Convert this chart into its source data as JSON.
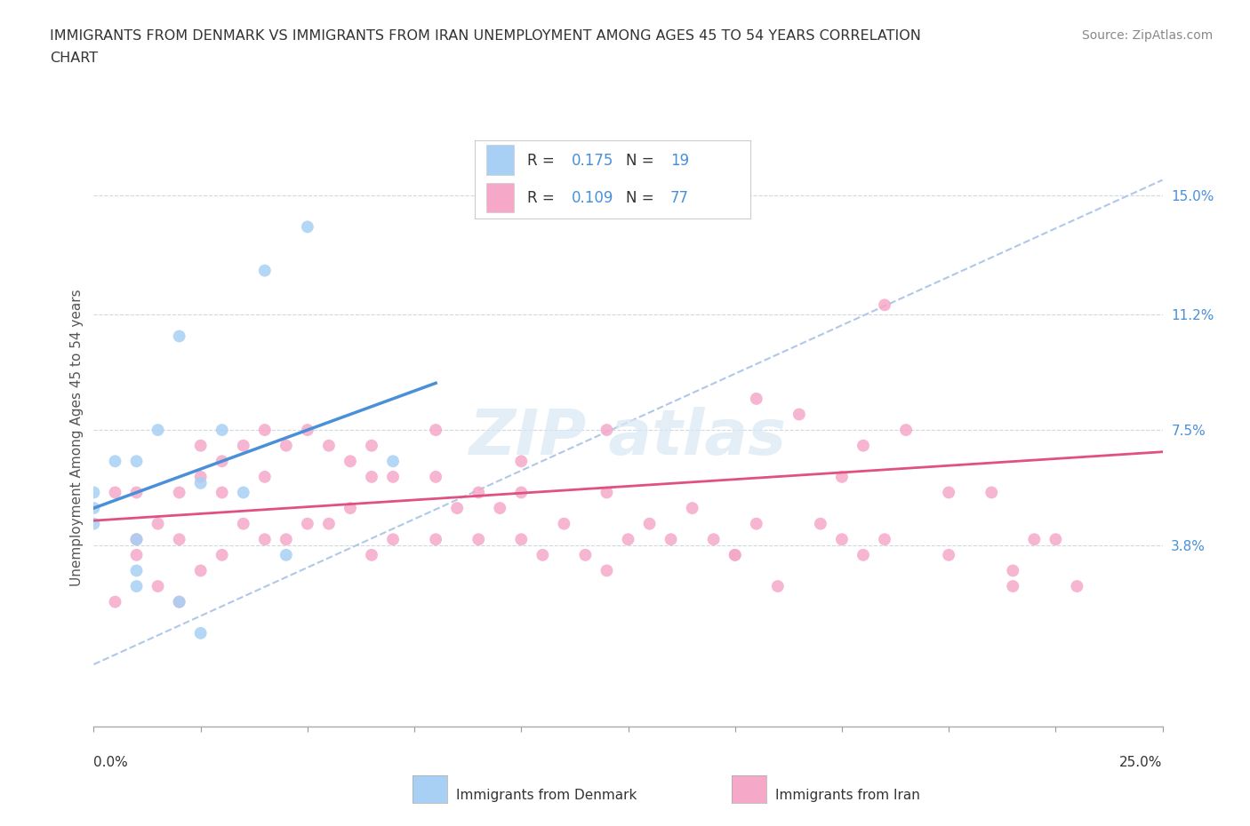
{
  "title_line1": "IMMIGRANTS FROM DENMARK VS IMMIGRANTS FROM IRAN UNEMPLOYMENT AMONG AGES 45 TO 54 YEARS CORRELATION",
  "title_line2": "CHART",
  "source_text": "Source: ZipAtlas.com",
  "ylabel": "Unemployment Among Ages 45 to 54 years",
  "xlim": [
    0.0,
    0.25
  ],
  "ylim": [
    -0.02,
    0.165
  ],
  "ytick_right": [
    0.038,
    0.075,
    0.112,
    0.15
  ],
  "ytick_right_labels": [
    "3.8%",
    "7.5%",
    "11.2%",
    "15.0%"
  ],
  "denmark_R": 0.175,
  "denmark_N": 19,
  "iran_R": 0.109,
  "iran_N": 77,
  "denmark_color": "#a8d0f5",
  "iran_color": "#f5a8c8",
  "denmark_line_color": "#4a90d9",
  "iran_line_color": "#e05080",
  "ref_line_color": "#b0c8e8",
  "watermark_color": "#d8e8f5",
  "background_color": "#ffffff",
  "denmark_x": [
    0.0,
    0.0,
    0.0,
    0.005,
    0.01,
    0.01,
    0.01,
    0.01,
    0.015,
    0.02,
    0.02,
    0.025,
    0.025,
    0.03,
    0.035,
    0.04,
    0.045,
    0.05,
    0.07
  ],
  "denmark_y": [
    0.055,
    0.05,
    0.045,
    0.065,
    0.065,
    0.04,
    0.03,
    0.025,
    0.075,
    0.105,
    0.02,
    0.058,
    0.01,
    0.075,
    0.055,
    0.126,
    0.035,
    0.14,
    0.065
  ],
  "iran_x": [
    0.005,
    0.005,
    0.01,
    0.01,
    0.01,
    0.015,
    0.015,
    0.02,
    0.02,
    0.02,
    0.025,
    0.025,
    0.025,
    0.03,
    0.03,
    0.03,
    0.035,
    0.035,
    0.04,
    0.04,
    0.04,
    0.045,
    0.045,
    0.05,
    0.05,
    0.055,
    0.055,
    0.06,
    0.06,
    0.065,
    0.065,
    0.065,
    0.07,
    0.07,
    0.08,
    0.08,
    0.08,
    0.085,
    0.09,
    0.09,
    0.095,
    0.1,
    0.1,
    0.1,
    0.105,
    0.11,
    0.115,
    0.12,
    0.12,
    0.125,
    0.13,
    0.135,
    0.14,
    0.145,
    0.15,
    0.155,
    0.155,
    0.16,
    0.165,
    0.17,
    0.175,
    0.175,
    0.18,
    0.185,
    0.185,
    0.19,
    0.2,
    0.2,
    0.21,
    0.215,
    0.215,
    0.22,
    0.225,
    0.23,
    0.12,
    0.15,
    0.18
  ],
  "iran_y": [
    0.055,
    0.02,
    0.055,
    0.04,
    0.035,
    0.045,
    0.025,
    0.055,
    0.04,
    0.02,
    0.07,
    0.06,
    0.03,
    0.065,
    0.055,
    0.035,
    0.07,
    0.045,
    0.075,
    0.06,
    0.04,
    0.07,
    0.04,
    0.075,
    0.045,
    0.07,
    0.045,
    0.065,
    0.05,
    0.07,
    0.06,
    0.035,
    0.06,
    0.04,
    0.075,
    0.06,
    0.04,
    0.05,
    0.055,
    0.04,
    0.05,
    0.065,
    0.055,
    0.04,
    0.035,
    0.045,
    0.035,
    0.075,
    0.055,
    0.04,
    0.045,
    0.04,
    0.05,
    0.04,
    0.035,
    0.085,
    0.045,
    0.025,
    0.08,
    0.045,
    0.06,
    0.04,
    0.035,
    0.04,
    0.115,
    0.075,
    0.035,
    0.055,
    0.055,
    0.03,
    0.025,
    0.04,
    0.04,
    0.025,
    0.03,
    0.035,
    0.07
  ]
}
